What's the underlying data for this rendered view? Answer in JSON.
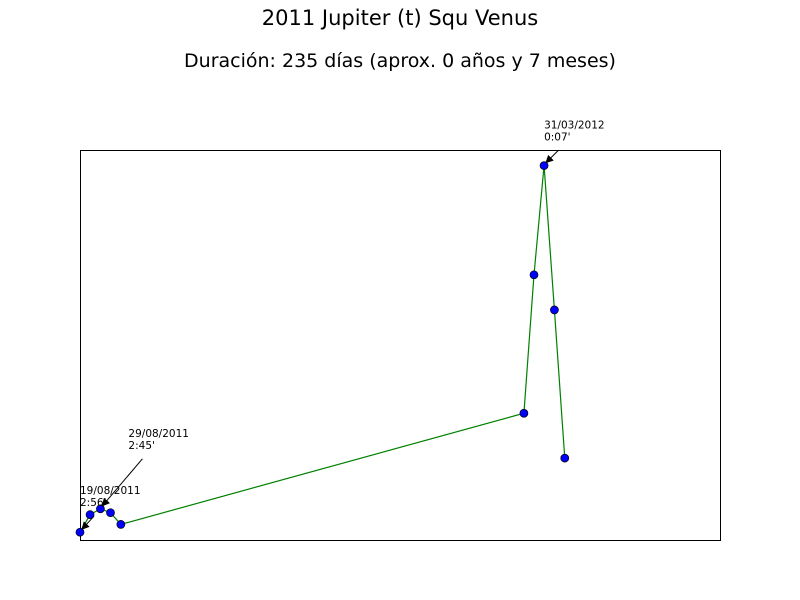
{
  "chart_data": {
    "type": "line",
    "title": "2011 Jupiter (t) Squ Venus",
    "subtitle": "Duración: 235 días (aprox. 0 años y 7 meses)",
    "xlabel": "",
    "ylabel": "",
    "grid": false,
    "axes_visible_ticks": false,
    "line_color": "#008000",
    "marker_color": "#0000ff",
    "xlim": [
      0,
      235
    ],
    "ylim": [
      0,
      1
    ],
    "series": [
      {
        "x": [
          0,
          3.7,
          7.5,
          11.2,
          15,
          163,
          166.7,
          170.4,
          174.2,
          178
        ],
        "values": [
          0.02,
          0.065,
          0.08,
          0.07,
          0.04,
          0.325,
          0.68,
          0.96,
          0.59,
          0.21
        ]
      }
    ],
    "annotations": [
      {
        "point_index": 0,
        "date": "19/08/2011",
        "time": "2:56'"
      },
      {
        "point_index": 2,
        "date": "29/08/2011",
        "time": "2:45'"
      },
      {
        "point_index": 7,
        "date": "31/03/2012",
        "time": "0:07'"
      }
    ]
  }
}
